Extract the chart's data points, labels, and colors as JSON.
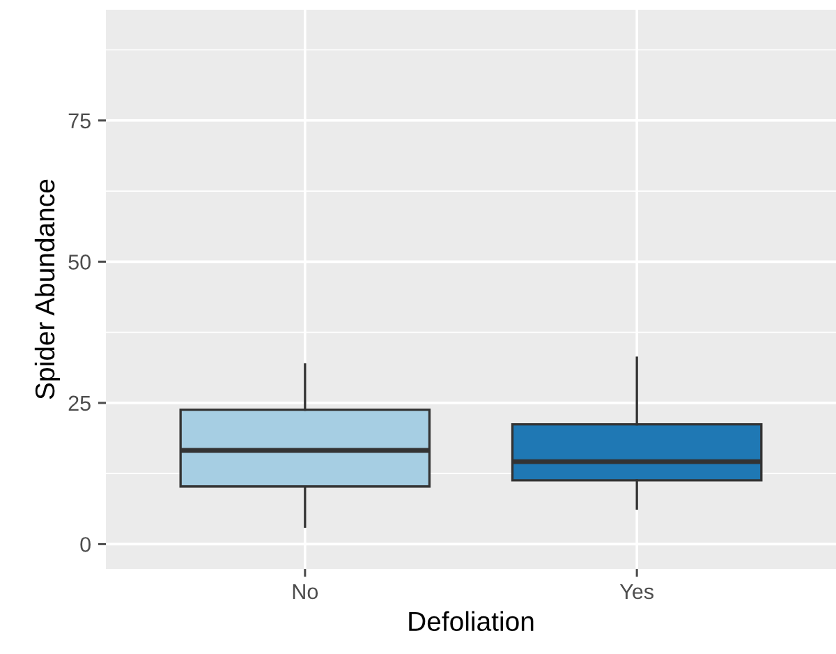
{
  "chart_data": {
    "type": "box",
    "xlabel": "Defoliation",
    "ylabel": "Spider Abundance",
    "categories": [
      "No",
      "Yes"
    ],
    "boxes": [
      {
        "low": 3.1,
        "q1": 10.2,
        "median": 16.6,
        "q3": 23.8,
        "high": 31.8
      },
      {
        "low": 6.3,
        "q1": 11.3,
        "median": 14.6,
        "q3": 21.2,
        "high": 33.0
      }
    ],
    "colors": [
      "#a6cee3",
      "#1f78b4"
    ],
    "ylim": [
      -4.4,
      94.6
    ],
    "yticks": [
      0,
      25,
      50,
      75
    ],
    "grid": true,
    "legend": false
  }
}
